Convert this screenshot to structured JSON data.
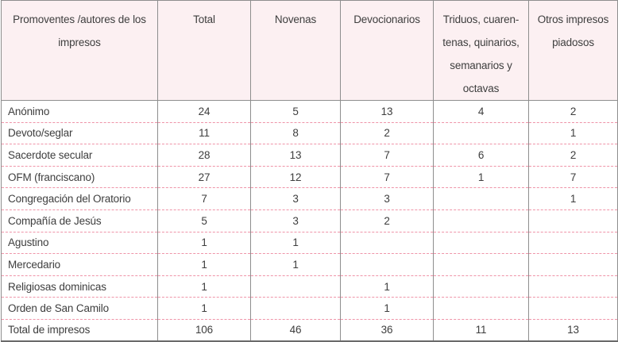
{
  "colors": {
    "header_bg": "#fcf0f2",
    "row_divider_pink": "#ef94a8",
    "grid_line_gray": "#8e8e8e",
    "outer_bottom_border": "#6a6a6a",
    "text": "#3e3e3e"
  },
  "chart_data": {
    "type": "table",
    "title": "",
    "columns": [
      "Promoventes /autores de los impresos",
      "Total",
      "Novenas",
      "Devocionarios",
      "Triduos, cuarentenas, quinarios, semanarios y octavas",
      "Otros impresos piadosos"
    ],
    "header_lines": [
      [
        "Promoventes /autores de los",
        "impresos"
      ],
      [
        "Total"
      ],
      [
        "Novenas"
      ],
      [
        "Devocionarios"
      ],
      [
        "Triduos, cuaren-",
        "tenas, quinarios,",
        "semanarios y",
        "octavas"
      ],
      [
        "Otros impresos",
        "piadosos"
      ]
    ],
    "rows": [
      {
        "label": "Anónimo",
        "values": [
          "24",
          "5",
          "13",
          "4",
          "2"
        ]
      },
      {
        "label": "Devoto/seglar",
        "values": [
          "11",
          "8",
          "2",
          "",
          "1"
        ]
      },
      {
        "label": "Sacerdote secular",
        "values": [
          "28",
          "13",
          "7",
          "6",
          "2"
        ]
      },
      {
        "label": "OFM (franciscano)",
        "values": [
          "27",
          "12",
          "7",
          "1",
          "7"
        ]
      },
      {
        "label": "Congregación del Oratorio",
        "values": [
          "7",
          "3",
          "3",
          "",
          "1"
        ]
      },
      {
        "label": "Compañía de Jesús",
        "values": [
          "5",
          "3",
          "2",
          "",
          ""
        ]
      },
      {
        "label": "Agustino",
        "values": [
          "1",
          "1",
          "",
          "",
          ""
        ]
      },
      {
        "label": "Mercedario",
        "values": [
          "1",
          "1",
          "",
          "",
          ""
        ]
      },
      {
        "label": "Religiosas dominicas",
        "values": [
          "1",
          "",
          "1",
          "",
          ""
        ]
      },
      {
        "label": "Orden de San Camilo",
        "values": [
          "1",
          "",
          "1",
          "",
          ""
        ]
      },
      {
        "label": "Total de impresos",
        "values": [
          "106",
          "46",
          "36",
          "11",
          "13"
        ]
      }
    ]
  }
}
